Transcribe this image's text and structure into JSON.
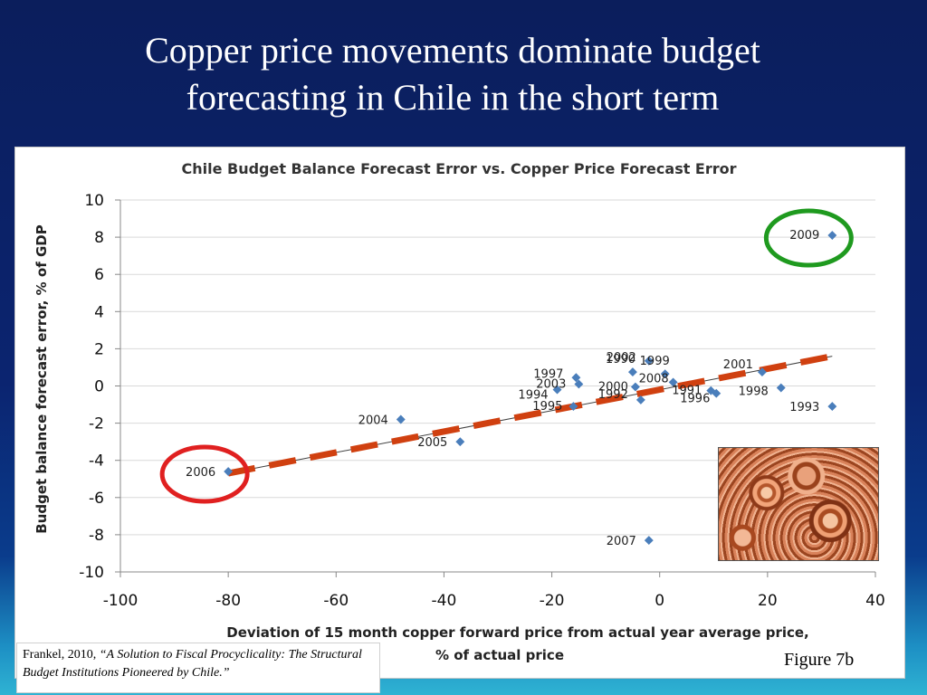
{
  "slide": {
    "title_line1": "Copper price movements dominate budget",
    "title_line2": "forecasting in Chile in the short term",
    "citation_author": "Frankel, 2010,",
    "citation_text": "“A Solution to Fiscal Procyclicality: The Structural Budget Institutions Pioneered by Chile.”",
    "figure_label": "Figure 7b"
  },
  "chart_data": {
    "type": "scatter",
    "title": "Chile Budget Balance Forecast Error vs. Copper Price Forecast Error",
    "xlabel_line1": "Deviation of 15 month copper forward price from actual year average price,",
    "xlabel_line2": "% of actual price",
    "ylabel": "Budget balance forecast error, % of GDP",
    "xlim": [
      -100,
      40
    ],
    "ylim": [
      -10,
      10
    ],
    "xticks": [
      -100,
      -80,
      -60,
      -40,
      -20,
      0,
      20,
      40
    ],
    "yticks": [
      -10,
      -8,
      -6,
      -4,
      -2,
      0,
      2,
      4,
      6,
      8,
      10
    ],
    "grid": "horizontal",
    "marker_color": "#4a7ebb",
    "points": [
      {
        "label": "2009",
        "x": 32,
        "y": 8.1
      },
      {
        "label": "2006",
        "x": -80,
        "y": -4.6
      },
      {
        "label": "2004",
        "x": -48,
        "y": -1.8
      },
      {
        "label": "2005",
        "x": -37,
        "y": -3.0
      },
      {
        "label": "2007",
        "x": -2,
        "y": -8.3
      },
      {
        "label": "2002",
        "x": -2,
        "y": 1.35
      },
      {
        "label": "1997",
        "x": -15.5,
        "y": 0.45
      },
      {
        "label": "2003",
        "x": -15,
        "y": 0.1
      },
      {
        "label": "1994",
        "x": -19,
        "y": -0.2
      },
      {
        "label": "1995",
        "x": -16,
        "y": -1.1
      },
      {
        "label": "1990",
        "x": -5,
        "y": 0.75
      },
      {
        "label": "1999",
        "x": 1,
        "y": 0.65
      },
      {
        "label": "2008",
        "x": 2.5,
        "y": 0.2
      },
      {
        "label": "2000",
        "x": -4.5,
        "y": -0.05
      },
      {
        "label": "1992",
        "x": -3.5,
        "y": -0.75
      },
      {
        "label": "1991",
        "x": 9.5,
        "y": -0.25
      },
      {
        "label": "1996",
        "x": 10.5,
        "y": -0.4
      },
      {
        "label": "2001",
        "x": 19,
        "y": 0.75
      },
      {
        "label": "1998",
        "x": 22.5,
        "y": -0.1
      },
      {
        "label": "1993",
        "x": 32,
        "y": -1.1
      }
    ],
    "trendline": {
      "x": [
        -80,
        32
      ],
      "y": [
        -4.7,
        1.6
      ],
      "color": "#404040"
    },
    "dashed_line": {
      "x": [
        -80,
        32
      ],
      "y": [
        -4.7,
        1.6
      ],
      "color": "#d04010"
    },
    "highlight_circles": [
      {
        "label": "2006",
        "color": "#e02020"
      },
      {
        "label": "2009",
        "color": "#1f9a1f"
      }
    ]
  }
}
